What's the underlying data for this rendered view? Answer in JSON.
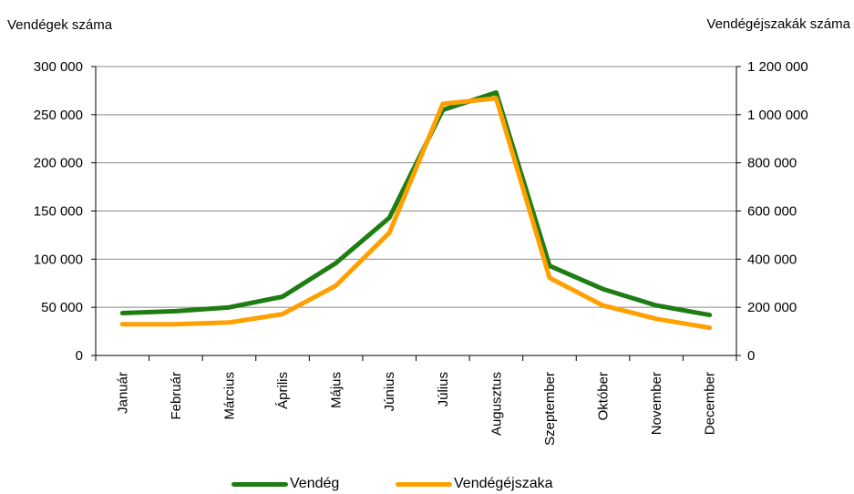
{
  "chart_data": {
    "type": "line",
    "categories": [
      "Január",
      "Február",
      "Március",
      "Április",
      "Május",
      "Június",
      "Július",
      "Augusztus",
      "Szeptember",
      "Október",
      "November",
      "December"
    ],
    "ylabel_left": "Vendégek száma",
    "ylabel_right": "Vendégéjszakák száma",
    "y_left": {
      "min": 0,
      "max": 300000,
      "step": 50000,
      "ticks": [
        "0",
        "50 000",
        "100 000",
        "150 000",
        "200 000",
        "250 000",
        "300 000"
      ]
    },
    "y_right": {
      "min": 0,
      "max": 1200000,
      "step": 200000,
      "ticks": [
        "0",
        "200 000",
        "400 000",
        "600 000",
        "800 000",
        "1 000 000",
        "1 200 000"
      ]
    },
    "grid": true,
    "legend_position": "bottom",
    "series": [
      {
        "name": "Vendég",
        "axis": "left",
        "color": "#1e7d12",
        "values": [
          44000,
          46000,
          50000,
          61000,
          96000,
          143000,
          255000,
          273000,
          93000,
          69000,
          52000,
          42000
        ]
      },
      {
        "name": "Vendégéjszaka",
        "axis": "right",
        "color": "#ffa000",
        "values": [
          130000,
          130000,
          137000,
          172000,
          290000,
          510000,
          1045000,
          1068000,
          322000,
          208000,
          152000,
          115000
        ]
      }
    ]
  }
}
